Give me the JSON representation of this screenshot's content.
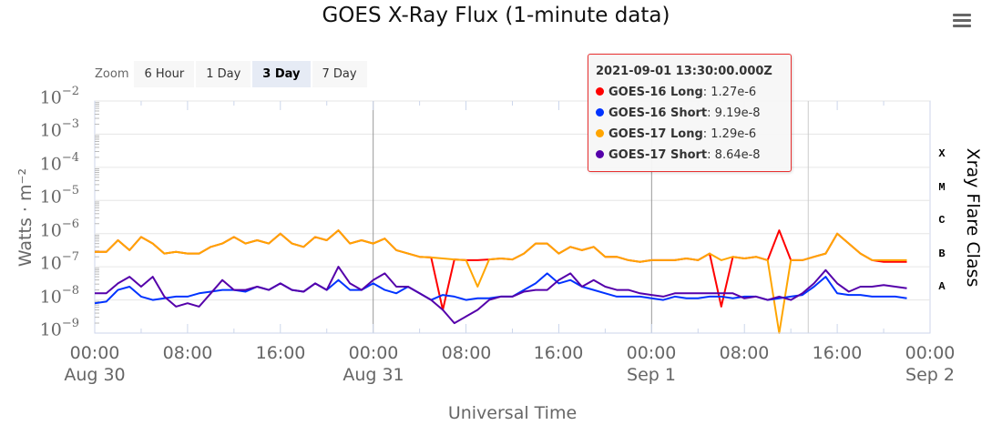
{
  "title": "GOES X-Ray Flux (1-minute data)",
  "menu": {
    "icon": "hamburger-menu-icon"
  },
  "zoom": {
    "label": "Zoom",
    "buttons": [
      {
        "label": "6 Hour",
        "active": false
      },
      {
        "label": "1 Day",
        "active": false
      },
      {
        "label": "3 Day",
        "active": true
      },
      {
        "label": "7 Day",
        "active": false
      }
    ]
  },
  "tooltip": {
    "timestamp": "2021-09-01 13:30:00.000Z",
    "rows": [
      {
        "name": "GOES-16 Long",
        "value": "1.27e-6",
        "color": "#ff0000"
      },
      {
        "name": "GOES-16 Short",
        "value": "9.19e-8",
        "color": "#0033ff"
      },
      {
        "name": "GOES-17 Long",
        "value": "1.29e-6",
        "color": "#ffa500"
      },
      {
        "name": "GOES-17 Short",
        "value": "8.64e-8",
        "color": "#5500aa"
      }
    ]
  },
  "axes": {
    "y_ticks": [
      {
        "base": "10",
        "exp": "−2"
      },
      {
        "base": "10",
        "exp": "−3"
      },
      {
        "base": "10",
        "exp": "−4"
      },
      {
        "base": "10",
        "exp": "−5"
      },
      {
        "base": "10",
        "exp": "−6"
      },
      {
        "base": "10",
        "exp": "−7"
      },
      {
        "base": "10",
        "exp": "−8"
      },
      {
        "base": "10",
        "exp": "−9"
      }
    ],
    "y_label": "Watts · m⁻²",
    "x_ticks": [
      {
        "time": "00:00",
        "date": "Aug 30"
      },
      {
        "time": "08:00",
        "date": ""
      },
      {
        "time": "16:00",
        "date": ""
      },
      {
        "time": "00:00",
        "date": "Aug 31"
      },
      {
        "time": "08:00",
        "date": ""
      },
      {
        "time": "16:00",
        "date": ""
      },
      {
        "time": "00:00",
        "date": "Sep 1"
      },
      {
        "time": "08:00",
        "date": ""
      },
      {
        "time": "16:00",
        "date": ""
      },
      {
        "time": "00:00",
        "date": "Sep 2"
      }
    ],
    "x_label": "Universal Time",
    "flare_classes": [
      "X",
      "M",
      "C",
      "B",
      "A"
    ],
    "flare_label": "Xray Flare Class"
  },
  "chart_data": {
    "type": "line",
    "title": "GOES X-Ray Flux (1-minute data)",
    "xlabel": "Universal Time",
    "ylabel": "Watts · m⁻²",
    "y_scale": "log",
    "ylim": [
      1e-09,
      0.01
    ],
    "xlim": [
      "2021-08-30T00:00Z",
      "2021-09-02T00:00Z"
    ],
    "secondary_y_labels": {
      "X": 0.0001,
      "M": 1e-05,
      "C": 1e-06,
      "B": 1e-07,
      "A": 1e-08
    },
    "secondary_ylabel": "Xray Flare Class",
    "grid": true,
    "crosshair_x": "2021-09-01T13:30Z",
    "x_hours": [
      0,
      1,
      2,
      3,
      4,
      5,
      6,
      7,
      8,
      9,
      10,
      11,
      12,
      13,
      14,
      15,
      16,
      17,
      18,
      19,
      20,
      21,
      22,
      23,
      24,
      25,
      26,
      27,
      28,
      29,
      30,
      31,
      32,
      33,
      34,
      35,
      36,
      37,
      38,
      39,
      40,
      41,
      42,
      43,
      44,
      45,
      46,
      47,
      48,
      49,
      50,
      51,
      52,
      53,
      54,
      55,
      56,
      57,
      58,
      59,
      60,
      61,
      62,
      63,
      64,
      65,
      66,
      67,
      68,
      69,
      70
    ],
    "series": [
      {
        "name": "GOES-16 Long",
        "color": "#ff0000",
        "log10_values": [
          -6.55,
          -6.55,
          -6.2,
          -6.5,
          -6.1,
          -6.3,
          -6.6,
          -6.55,
          -6.6,
          -6.6,
          -6.4,
          -6.3,
          -6.1,
          -6.3,
          -6.2,
          -6.3,
          -6.0,
          -6.3,
          -6.4,
          -6.1,
          -6.2,
          -5.9,
          -6.3,
          -6.2,
          -6.3,
          -6.15,
          -6.5,
          -6.6,
          -6.7,
          -6.72,
          -8.3,
          -6.78,
          -6.8,
          -6.8,
          -6.78,
          -6.75,
          -6.78,
          -6.6,
          -6.3,
          -6.3,
          -6.6,
          -6.4,
          -6.5,
          -6.4,
          -6.7,
          -6.7,
          -6.8,
          -6.85,
          -6.8,
          -6.8,
          -6.8,
          -6.75,
          -6.8,
          -6.6,
          -8.2,
          -6.7,
          -6.75,
          -6.7,
          -6.8,
          -5.9,
          -6.8,
          -6.8,
          -6.7,
          -6.6,
          -6.0,
          -6.3,
          -6.6,
          -6.8,
          -6.85,
          -6.85,
          -6.85
        ],
        "tooltip_value": 1.27e-06
      },
      {
        "name": "GOES-16 Short",
        "color": "#0033ff",
        "log10_values": [
          -8.1,
          -8.05,
          -7.7,
          -7.6,
          -7.9,
          -8.0,
          -7.95,
          -7.9,
          -7.9,
          -7.8,
          -7.75,
          -7.7,
          -7.7,
          -7.75,
          -7.6,
          -7.7,
          -7.5,
          -7.7,
          -7.75,
          -7.5,
          -7.7,
          -7.4,
          -7.7,
          -7.7,
          -7.5,
          -7.7,
          -7.8,
          -7.6,
          -7.8,
          -8.0,
          -7.85,
          -7.9,
          -8.0,
          -7.95,
          -7.95,
          -7.9,
          -7.9,
          -7.7,
          -7.5,
          -7.2,
          -7.5,
          -7.4,
          -7.6,
          -7.7,
          -7.8,
          -7.9,
          -7.9,
          -7.9,
          -7.95,
          -8.0,
          -7.9,
          -7.95,
          -7.95,
          -7.9,
          -7.9,
          -7.95,
          -7.9,
          -7.9,
          -8.0,
          -7.95,
          -7.9,
          -7.85,
          -7.6,
          -7.3,
          -7.8,
          -7.85,
          -7.85,
          -7.9,
          -7.9,
          -7.9,
          -7.95
        ],
        "tooltip_value": 9.19e-08
      },
      {
        "name": "GOES-17 Long",
        "color": "#ffa500",
        "log10_values": [
          -6.55,
          -6.55,
          -6.2,
          -6.5,
          -6.1,
          -6.3,
          -6.6,
          -6.55,
          -6.6,
          -6.6,
          -6.4,
          -6.3,
          -6.1,
          -6.3,
          -6.2,
          -6.3,
          -6.0,
          -6.3,
          -6.4,
          -6.1,
          -6.2,
          -5.9,
          -6.3,
          -6.2,
          -6.3,
          -6.15,
          -6.5,
          -6.6,
          -6.7,
          -6.72,
          -6.75,
          -6.78,
          -6.8,
          -7.6,
          -6.78,
          -6.75,
          -6.78,
          -6.6,
          -6.3,
          -6.3,
          -6.6,
          -6.4,
          -6.5,
          -6.4,
          -6.7,
          -6.7,
          -6.8,
          -6.85,
          -6.8,
          -6.8,
          -6.8,
          -6.75,
          -6.8,
          -6.6,
          -6.8,
          -6.7,
          -6.75,
          -6.7,
          -6.8,
          -9.0,
          -6.8,
          -6.8,
          -6.7,
          -6.6,
          -6.0,
          -6.3,
          -6.6,
          -6.8,
          -6.8,
          -6.8,
          -6.8
        ],
        "tooltip_value": 1.29e-06
      },
      {
        "name": "GOES-17 Short",
        "color": "#5500aa",
        "log10_values": [
          -7.8,
          -7.8,
          -7.5,
          -7.3,
          -7.6,
          -7.3,
          -7.9,
          -8.2,
          -8.1,
          -8.2,
          -7.8,
          -7.4,
          -7.7,
          -7.7,
          -7.6,
          -7.7,
          -7.5,
          -7.7,
          -7.75,
          -7.5,
          -7.7,
          -7.0,
          -7.5,
          -7.7,
          -7.4,
          -7.2,
          -7.6,
          -7.6,
          -7.8,
          -8.0,
          -8.3,
          -8.7,
          -8.5,
          -8.3,
          -8.0,
          -7.9,
          -7.9,
          -7.75,
          -7.7,
          -7.7,
          -7.4,
          -7.2,
          -7.6,
          -7.4,
          -7.6,
          -7.7,
          -7.7,
          -7.8,
          -7.85,
          -7.9,
          -7.8,
          -7.8,
          -7.8,
          -7.8,
          -7.8,
          -7.8,
          -7.95,
          -7.9,
          -8.0,
          -7.9,
          -8.0,
          -7.8,
          -7.5,
          -7.1,
          -7.5,
          -7.75,
          -7.6,
          -7.6,
          -7.55,
          -7.6,
          -7.65
        ],
        "tooltip_value": 8.64e-08
      }
    ]
  }
}
